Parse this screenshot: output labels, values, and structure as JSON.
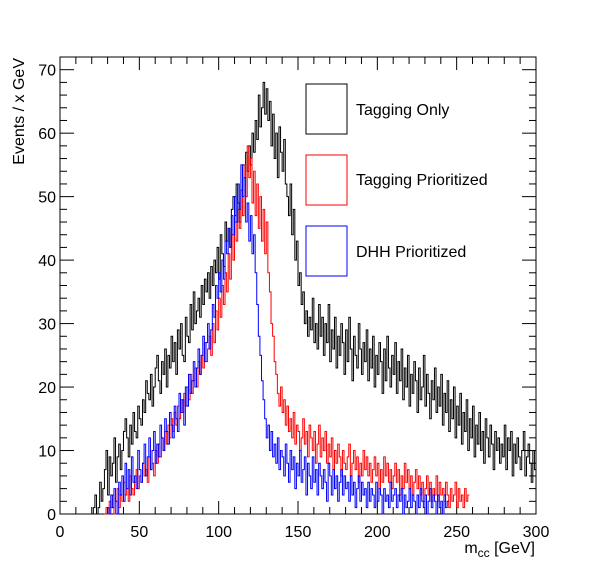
{
  "chart_data": {
    "type": "line",
    "style": "step-histogram",
    "xlabel": "m",
    "xlabel_subscript": "cc",
    "xlabel_unit": " [GeV]",
    "ylabel": "Events / x GeV",
    "xlim": [
      0,
      300
    ],
    "ylim": [
      0,
      72
    ],
    "x_ticks": [
      0,
      50,
      100,
      150,
      200,
      250,
      300
    ],
    "y_ticks": [
      0,
      10,
      20,
      30,
      40,
      50,
      60,
      70
    ],
    "bin_width": 1,
    "grid": false,
    "legend": "top-right",
    "series": [
      {
        "name": "Tagging Only",
        "color": "#000000",
        "x_start": 20,
        "values": [
          0,
          1,
          3,
          0,
          1,
          5,
          2,
          4,
          7,
          10,
          3,
          9,
          6,
          8,
          12,
          5,
          9,
          11,
          7,
          10,
          13,
          15,
          12,
          9,
          14,
          11,
          16,
          13,
          12,
          17,
          15,
          14,
          18,
          16,
          21,
          19,
          18,
          22,
          17,
          20,
          23,
          25,
          21,
          19,
          24,
          22,
          26,
          20,
          25,
          23,
          28,
          24,
          27,
          22,
          29,
          26,
          30,
          25,
          24,
          31,
          28,
          27,
          33,
          29,
          35,
          30,
          32,
          34,
          31,
          36,
          33,
          37,
          35,
          38,
          34,
          39,
          36,
          40,
          38,
          42,
          37,
          44,
          41,
          39,
          46,
          43,
          45,
          42,
          48,
          50,
          47,
          52,
          49,
          46,
          51,
          55,
          53,
          57,
          54,
          58,
          55,
          60,
          57,
          62,
          59,
          66,
          61,
          64,
          68,
          63,
          67,
          62,
          65,
          58,
          63,
          56,
          60,
          53,
          61,
          57,
          54,
          59,
          52,
          50,
          47,
          52,
          44,
          48,
          40,
          43,
          36,
          38,
          33,
          35,
          30,
          32,
          28,
          31,
          29,
          34,
          27,
          30,
          26,
          33,
          28,
          31,
          25,
          30,
          27,
          33,
          24,
          29,
          26,
          31,
          23,
          28,
          25,
          30,
          27,
          22,
          29,
          24,
          31,
          26,
          21,
          28,
          25,
          23,
          30,
          26,
          22,
          27,
          24,
          29,
          21,
          26,
          23,
          28,
          20,
          25,
          22,
          27,
          24,
          19,
          26,
          21,
          28,
          23,
          20,
          25,
          22,
          27,
          19,
          24,
          21,
          26,
          18,
          23,
          20,
          25,
          17,
          22,
          19,
          24,
          21,
          16,
          23,
          18,
          20,
          25,
          17,
          22,
          19,
          15,
          21,
          18,
          23,
          16,
          20,
          17,
          22,
          14,
          19,
          16,
          21,
          13,
          18,
          15,
          20,
          12,
          17,
          14,
          19,
          11,
          16,
          13,
          18,
          10,
          15,
          12,
          17,
          9,
          14,
          11,
          16,
          10,
          13,
          8,
          15,
          12,
          9,
          14,
          11,
          7,
          13,
          10,
          12,
          8,
          11,
          9,
          14,
          7,
          12,
          10,
          13,
          6,
          11,
          8,
          12,
          9,
          7,
          10,
          13,
          6,
          9,
          11,
          8,
          5,
          10,
          7
        ]
      },
      {
        "name": "Tagging Prioritized",
        "color": "#ff0000",
        "x_start": 28,
        "values": [
          0,
          1,
          0,
          2,
          1,
          3,
          0,
          2,
          4,
          1,
          3,
          2,
          5,
          3,
          4,
          2,
          6,
          4,
          3,
          5,
          7,
          4,
          6,
          5,
          8,
          6,
          7,
          5,
          9,
          7,
          8,
          6,
          10,
          8,
          11,
          9,
          12,
          10,
          13,
          11,
          14,
          12,
          15,
          13,
          16,
          14,
          17,
          15,
          18,
          16,
          19,
          17,
          20,
          18,
          22,
          19,
          21,
          23,
          20,
          24,
          22,
          25,
          23,
          27,
          24,
          26,
          28,
          25,
          30,
          27,
          32,
          29,
          34,
          31,
          36,
          33,
          38,
          35,
          41,
          37,
          44,
          40,
          46,
          43,
          48,
          45,
          51,
          47,
          55,
          50,
          58,
          53,
          56,
          49,
          54,
          47,
          52,
          45,
          50,
          43,
          48,
          41,
          46,
          38,
          35,
          30,
          28,
          24,
          22,
          19,
          17,
          20,
          16,
          18,
          14,
          17,
          13,
          15,
          12,
          16,
          11,
          14,
          13,
          10,
          12,
          15,
          11,
          13,
          9,
          14,
          12,
          10,
          13,
          8,
          11,
          14,
          9,
          12,
          10,
          13,
          8,
          11,
          9,
          12,
          7,
          10,
          8,
          11,
          9,
          6,
          10,
          8,
          7,
          9,
          11,
          6,
          8,
          10,
          7,
          9,
          5,
          8,
          6,
          10,
          7,
          9,
          6,
          8,
          5,
          7,
          9,
          6,
          8,
          4,
          7,
          5,
          9,
          6,
          8,
          5,
          7,
          4,
          6,
          8,
          5,
          7,
          3,
          6,
          4,
          8,
          5,
          7,
          4,
          6,
          3,
          5,
          7,
          4,
          6,
          3,
          5,
          2,
          4,
          6,
          3,
          5,
          2,
          4,
          3,
          6,
          2,
          5,
          3,
          4,
          2,
          5,
          3,
          1,
          4,
          2,
          3,
          5,
          1,
          4,
          2,
          3,
          1,
          4,
          2,
          3
        ]
      },
      {
        "name": "DHH Prioritized",
        "color": "#0000ff",
        "x_start": 30,
        "values": [
          1,
          0,
          3,
          1,
          4,
          2,
          0,
          5,
          3,
          6,
          2,
          8,
          4,
          7,
          3,
          9,
          5,
          6,
          4,
          10,
          7,
          5,
          8,
          11,
          6,
          9,
          12,
          7,
          10,
          13,
          8,
          11,
          9,
          14,
          12,
          10,
          15,
          13,
          11,
          16,
          14,
          12,
          17,
          15,
          13,
          19,
          16,
          18,
          14,
          20,
          17,
          22,
          19,
          21,
          24,
          20,
          23,
          26,
          22,
          25,
          28,
          24,
          27,
          30,
          26,
          29,
          33,
          31,
          36,
          34,
          38,
          35,
          40,
          37,
          43,
          41,
          45,
          42,
          47,
          44,
          50,
          46,
          52,
          48,
          55,
          50,
          53,
          46,
          49,
          43,
          47,
          41,
          44,
          38,
          33,
          28,
          25,
          21,
          18,
          15,
          12,
          14,
          10,
          13,
          9,
          11,
          8,
          12,
          7,
          10,
          9,
          6,
          11,
          8,
          5,
          10,
          7,
          9,
          4,
          8,
          6,
          10,
          5,
          7,
          9,
          3,
          8,
          6,
          4,
          9,
          5,
          7,
          3,
          8,
          6,
          4,
          7,
          5,
          2,
          8,
          6,
          3,
          7,
          4,
          6,
          2,
          5,
          7,
          3,
          6,
          4,
          5,
          2,
          6,
          3,
          5,
          1,
          4,
          6,
          2,
          5,
          3,
          4,
          1,
          5,
          2,
          4,
          3,
          1,
          5,
          2,
          4,
          3,
          0,
          4,
          2,
          3,
          1,
          5,
          2,
          3,
          4,
          1,
          3,
          2,
          4,
          0,
          3,
          1,
          2,
          4,
          1,
          3,
          2,
          0,
          3,
          1,
          4,
          2,
          1,
          3,
          0,
          2,
          4,
          1,
          3,
          2,
          0,
          3,
          1,
          2,
          0,
          3,
          1,
          2
        ]
      }
    ]
  }
}
